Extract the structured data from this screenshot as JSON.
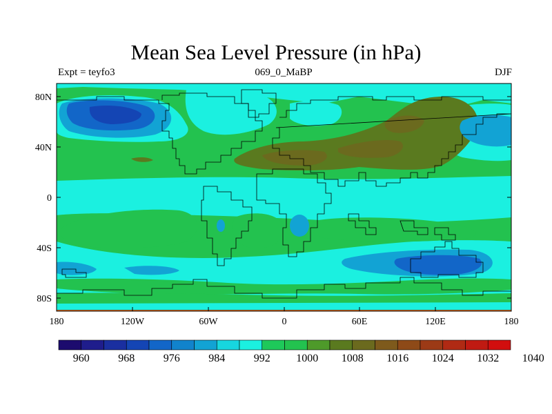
{
  "title": "Mean Sea Level Pressure (in hPa)",
  "subtitle_left": "Expt = teyfo3",
  "subtitle_center": "069_0_MaBP",
  "subtitle_right": "DJF",
  "lat_ticks": [
    "80N",
    "40N",
    "0",
    "40S",
    "80S"
  ],
  "lon_ticks": [
    "180",
    "120W",
    "60W",
    "0",
    "60E",
    "120E",
    "180"
  ],
  "colorbar": {
    "labels": [
      "960",
      "968",
      "976",
      "984",
      "992",
      "1000",
      "1008",
      "1016",
      "1024",
      "1032",
      "1040"
    ],
    "colors": [
      "#1c0b6e",
      "#1f1d8c",
      "#1a2fa0",
      "#1445b4",
      "#1266c8",
      "#1183cc",
      "#12a3d4",
      "#17d6df",
      "#1bf0e0",
      "#1ec95a",
      "#23c24f",
      "#4e9a2a",
      "#5a7a1f",
      "#6b6a1e",
      "#7e5a1c",
      "#8e4a18",
      "#9c3a16",
      "#b02a14",
      "#c01a12",
      "#d20e0e"
    ]
  },
  "map": {
    "levels_hpa": [
      1000,
      1008,
      1016,
      1024
    ],
    "fill_colors": {
      "below_1000": "#1bf0e0",
      "1000_1008": "#23c24f",
      "1008_1016": "#5a7a1f",
      "low_984_992": "#12a3d4",
      "low_976_984": "#1266c8",
      "low_968_976": "#1445b4"
    }
  }
}
